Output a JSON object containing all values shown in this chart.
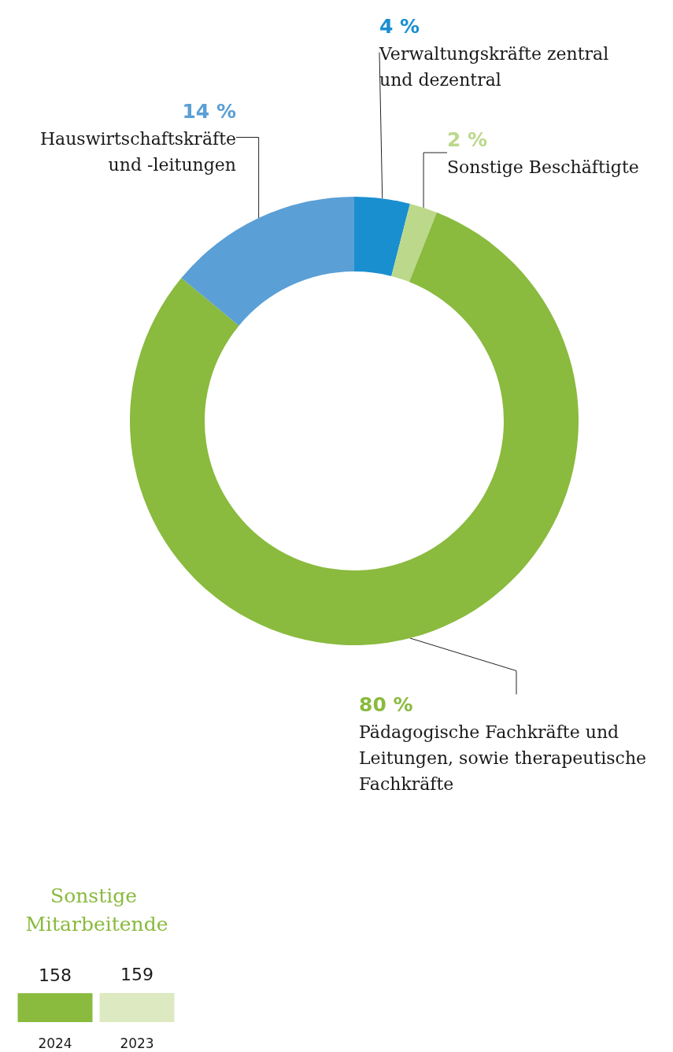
{
  "chart_data": [
    {
      "type": "donut",
      "categories": [
        "Verwaltungskräfte zentral und dezentral",
        "Sonstige Beschäftigte",
        "Pädagogische Fachkräfte und Leitungen, sowie therapeutische Fachkräfte",
        "Hauswirtschaftskräfte und -leitungen"
      ],
      "values": [
        4,
        2,
        80,
        14
      ],
      "colors": [
        "#1a8fcf",
        "#bcd88a",
        "#8aba3e",
        "#5a9fd6"
      ],
      "value_labels": [
        "4 %",
        "2 %",
        "80 %",
        "14 %"
      ],
      "legend": false
    },
    {
      "type": "bar",
      "title": "Sonstige Mitarbeitende",
      "categories": [
        "2024",
        "2023"
      ],
      "values": [
        158,
        159
      ],
      "colors": [
        "#8aba3e",
        "#dde9c1"
      ],
      "data_labels": true,
      "legend": false
    }
  ]
}
